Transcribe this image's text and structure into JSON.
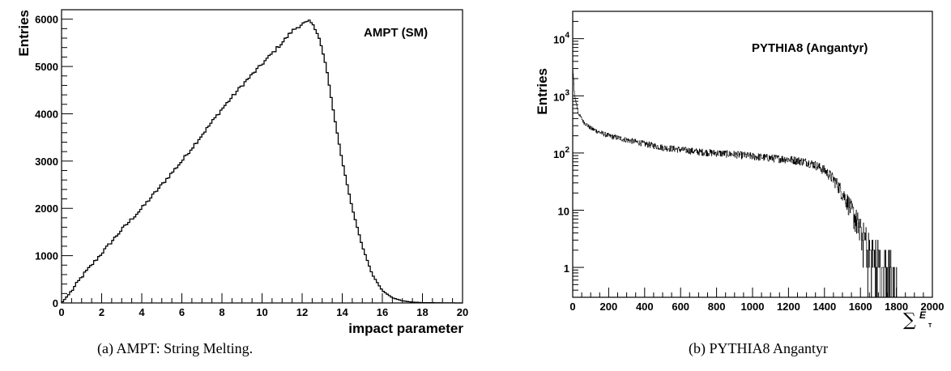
{
  "chart_data": [
    {
      "type": "histogram",
      "subfigure": "(a)",
      "caption": "(a) AMPT: String Melting.",
      "label": "AMPT (SM)",
      "xlabel": "impact parameter",
      "ylabel": "Entries",
      "xlim": [
        0,
        20
      ],
      "ylim": [
        0,
        6200
      ],
      "x_ticks": [
        "0",
        "2",
        "4",
        "6",
        "8",
        "10",
        "12",
        "14",
        "16",
        "18",
        "20"
      ],
      "y_ticks": [
        "0",
        "1000",
        "2000",
        "3000",
        "4000",
        "5000",
        "6000"
      ],
      "bin_width": 0.1,
      "control_points": {
        "x": [
          0,
          0.5,
          1,
          2,
          3,
          4,
          5,
          6,
          7,
          8,
          9,
          10,
          11,
          11.5,
          12,
          12.4,
          12.8,
          13.2,
          13.6,
          14,
          14.5,
          15,
          15.5,
          16,
          16.5,
          17,
          17.5,
          18,
          19,
          20
        ],
        "y": [
          0,
          250,
          550,
          1050,
          1550,
          2000,
          2500,
          3000,
          3550,
          4100,
          4600,
          5050,
          5500,
          5750,
          5900,
          5950,
          5700,
          5000,
          3950,
          3000,
          2000,
          1200,
          600,
          260,
          110,
          45,
          18,
          8,
          2,
          0
        ]
      },
      "grid": false
    },
    {
      "type": "histogram",
      "subfigure": "(b)",
      "caption": "(b) PYTHIA8 Angantyr",
      "label": "PYTHIA8 (Angantyr)",
      "xlabel_symbol": "∑",
      "xlabel_var": "E",
      "xlabel_sub": "T",
      "ylabel": "Entries",
      "xlim": [
        0,
        2000
      ],
      "ylim": [
        0.3,
        30000
      ],
      "yscale": "log",
      "x_ticks": [
        "0",
        "200",
        "400",
        "600",
        "800",
        "1000",
        "1200",
        "1400",
        "1600",
        "1800",
        "2000"
      ],
      "y_ticks": [
        {
          "base": "10",
          "exp": "4"
        },
        {
          "base": "10",
          "exp": "3"
        },
        {
          "base": "10",
          "exp": "2"
        },
        {
          "base": "10",
          "exp": ""
        },
        {
          "base": "1",
          "exp": ""
        }
      ],
      "bin_width": 2,
      "control_points": {
        "x": [
          0,
          10,
          30,
          60,
          100,
          150,
          200,
          300,
          400,
          500,
          600,
          700,
          800,
          900,
          1000,
          1100,
          1200,
          1300,
          1350,
          1400,
          1450,
          1500,
          1550,
          1600,
          1650,
          1700,
          1750,
          1800
        ],
        "y": [
          3000,
          1000,
          500,
          350,
          270,
          230,
          200,
          170,
          145,
          125,
          115,
          105,
          100,
          95,
          88,
          82,
          78,
          70,
          62,
          50,
          35,
          20,
          10,
          4,
          2,
          1.2,
          0.8,
          0.5
        ]
      },
      "grid": false
    }
  ]
}
